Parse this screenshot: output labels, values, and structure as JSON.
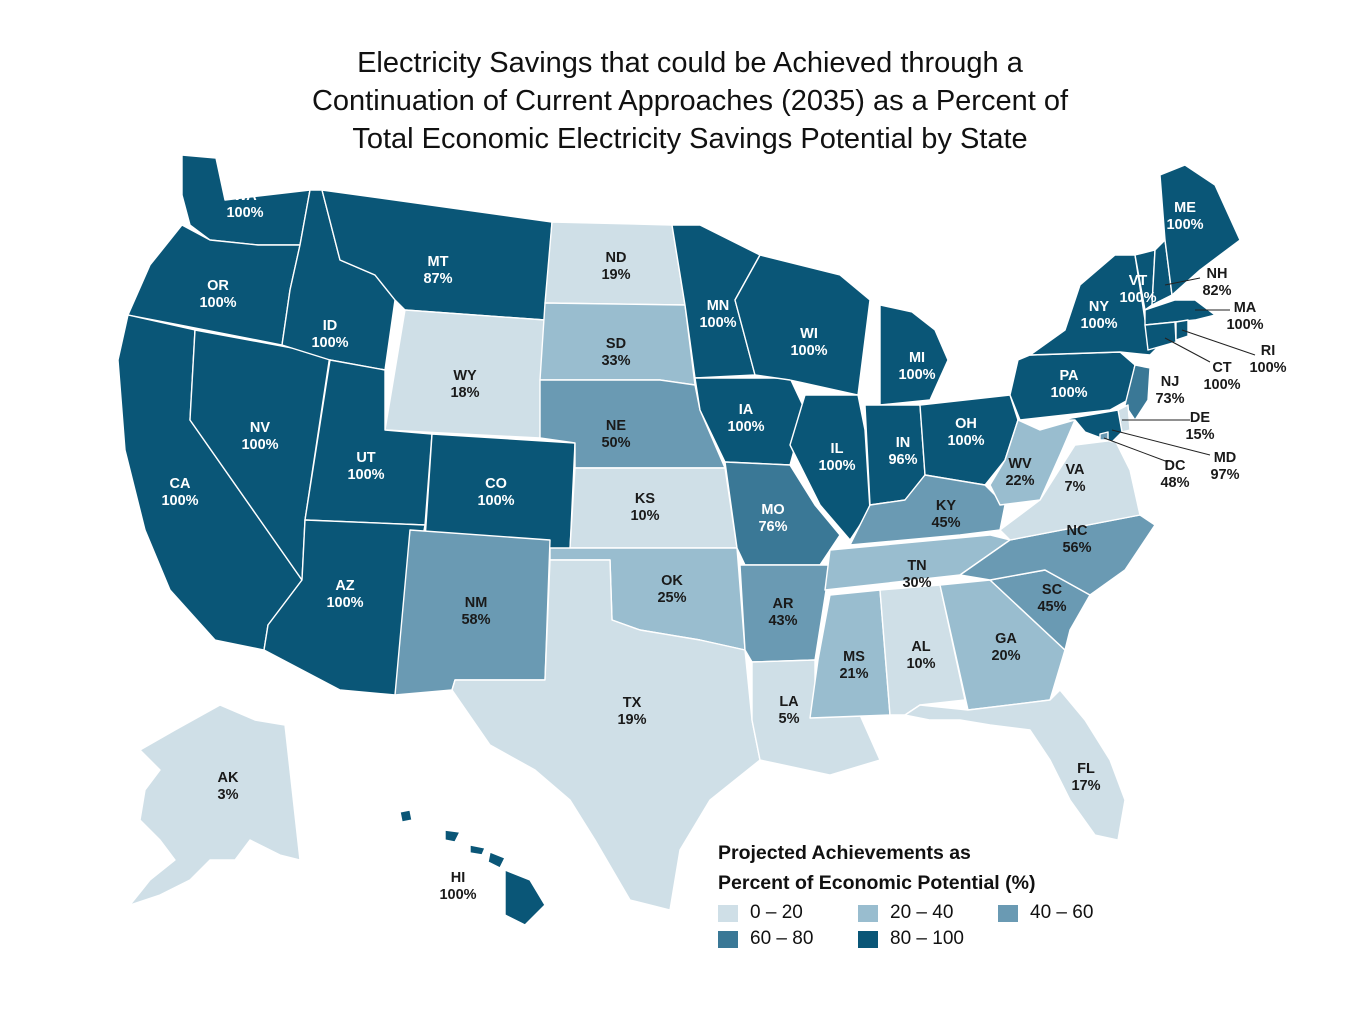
{
  "title": [
    "Electricity Savings that could be Achieved through a",
    "Continuation of Current Approaches (2035) as a Percent of",
    "Total Economic Electricity Savings Potential by State"
  ],
  "legend": {
    "title_lines": [
      "Projected Achievements as",
      "Percent of Economic Potential (%)"
    ],
    "bins": [
      {
        "label": "0 – 20",
        "color": "#cfdfe7"
      },
      {
        "label": "20 – 40",
        "color": "#99bdcf"
      },
      {
        "label": "40 – 60",
        "color": "#6a9ab3"
      },
      {
        "label": "60 – 80",
        "color": "#3a7896"
      },
      {
        "label": "80 – 100",
        "color": "#0a5677"
      }
    ]
  },
  "states": {
    "WA": {
      "name": "WA",
      "value": "100%",
      "pct": 100
    },
    "OR": {
      "name": "OR",
      "value": "100%",
      "pct": 100
    },
    "CA": {
      "name": "CA",
      "value": "100%",
      "pct": 100
    },
    "NV": {
      "name": "NV",
      "value": "100%",
      "pct": 100
    },
    "ID": {
      "name": "ID",
      "value": "100%",
      "pct": 100
    },
    "MT": {
      "name": "MT",
      "value": "87%",
      "pct": 87
    },
    "WY": {
      "name": "WY",
      "value": "18%",
      "pct": 18
    },
    "UT": {
      "name": "UT",
      "value": "100%",
      "pct": 100
    },
    "AZ": {
      "name": "AZ",
      "value": "100%",
      "pct": 100
    },
    "CO": {
      "name": "CO",
      "value": "100%",
      "pct": 100
    },
    "NM": {
      "name": "NM",
      "value": "58%",
      "pct": 58
    },
    "ND": {
      "name": "ND",
      "value": "19%",
      "pct": 19
    },
    "SD": {
      "name": "SD",
      "value": "33%",
      "pct": 33
    },
    "NE": {
      "name": "NE",
      "value": "50%",
      "pct": 50
    },
    "KS": {
      "name": "KS",
      "value": "10%",
      "pct": 10
    },
    "OK": {
      "name": "OK",
      "value": "25%",
      "pct": 25
    },
    "TX": {
      "name": "TX",
      "value": "19%",
      "pct": 19
    },
    "MN": {
      "name": "MN",
      "value": "100%",
      "pct": 100
    },
    "IA": {
      "name": "IA",
      "value": "100%",
      "pct": 100
    },
    "MO": {
      "name": "MO",
      "value": "76%",
      "pct": 76
    },
    "AR": {
      "name": "AR",
      "value": "43%",
      "pct": 43
    },
    "LA": {
      "name": "LA",
      "value": "5%",
      "pct": 5
    },
    "WI": {
      "name": "WI",
      "value": "100%",
      "pct": 100
    },
    "IL": {
      "name": "IL",
      "value": "100%",
      "pct": 100
    },
    "MI": {
      "name": "MI",
      "value": "100%",
      "pct": 100
    },
    "IN": {
      "name": "IN",
      "value": "96%",
      "pct": 96
    },
    "OH": {
      "name": "OH",
      "value": "100%",
      "pct": 100
    },
    "KY": {
      "name": "KY",
      "value": "45%",
      "pct": 45
    },
    "TN": {
      "name": "TN",
      "value": "30%",
      "pct": 30
    },
    "MS": {
      "name": "MS",
      "value": "21%",
      "pct": 21
    },
    "AL": {
      "name": "AL",
      "value": "10%",
      "pct": 10
    },
    "GA": {
      "name": "GA",
      "value": "20%",
      "pct": 20
    },
    "FL": {
      "name": "FL",
      "value": "17%",
      "pct": 17
    },
    "SC": {
      "name": "SC",
      "value": "45%",
      "pct": 45
    },
    "NC": {
      "name": "NC",
      "value": "56%",
      "pct": 56
    },
    "VA": {
      "name": "VA",
      "value": "7%",
      "pct": 7
    },
    "WV": {
      "name": "WV",
      "value": "22%",
      "pct": 22
    },
    "PA": {
      "name": "PA",
      "value": "100%",
      "pct": 100
    },
    "NY": {
      "name": "NY",
      "value": "100%",
      "pct": 100
    },
    "VT": {
      "name": "VT",
      "value": "100%",
      "pct": 100
    },
    "NH": {
      "name": "NH",
      "value": "82%",
      "pct": 82
    },
    "ME": {
      "name": "ME",
      "value": "100%",
      "pct": 100
    },
    "MA": {
      "name": "MA",
      "value": "100%",
      "pct": 100
    },
    "RI": {
      "name": "RI",
      "value": "100%",
      "pct": 100
    },
    "CT": {
      "name": "CT",
      "value": "100%",
      "pct": 100
    },
    "NJ": {
      "name": "NJ",
      "value": "73%",
      "pct": 73
    },
    "DE": {
      "name": "DE",
      "value": "15%",
      "pct": 15
    },
    "MD": {
      "name": "MD",
      "value": "97%",
      "pct": 97
    },
    "DC": {
      "name": "DC",
      "value": "48%",
      "pct": 48
    },
    "AK": {
      "name": "AK",
      "value": "3%",
      "pct": 3
    },
    "HI": {
      "name": "HI",
      "value": "100%",
      "pct": 100
    }
  }
}
